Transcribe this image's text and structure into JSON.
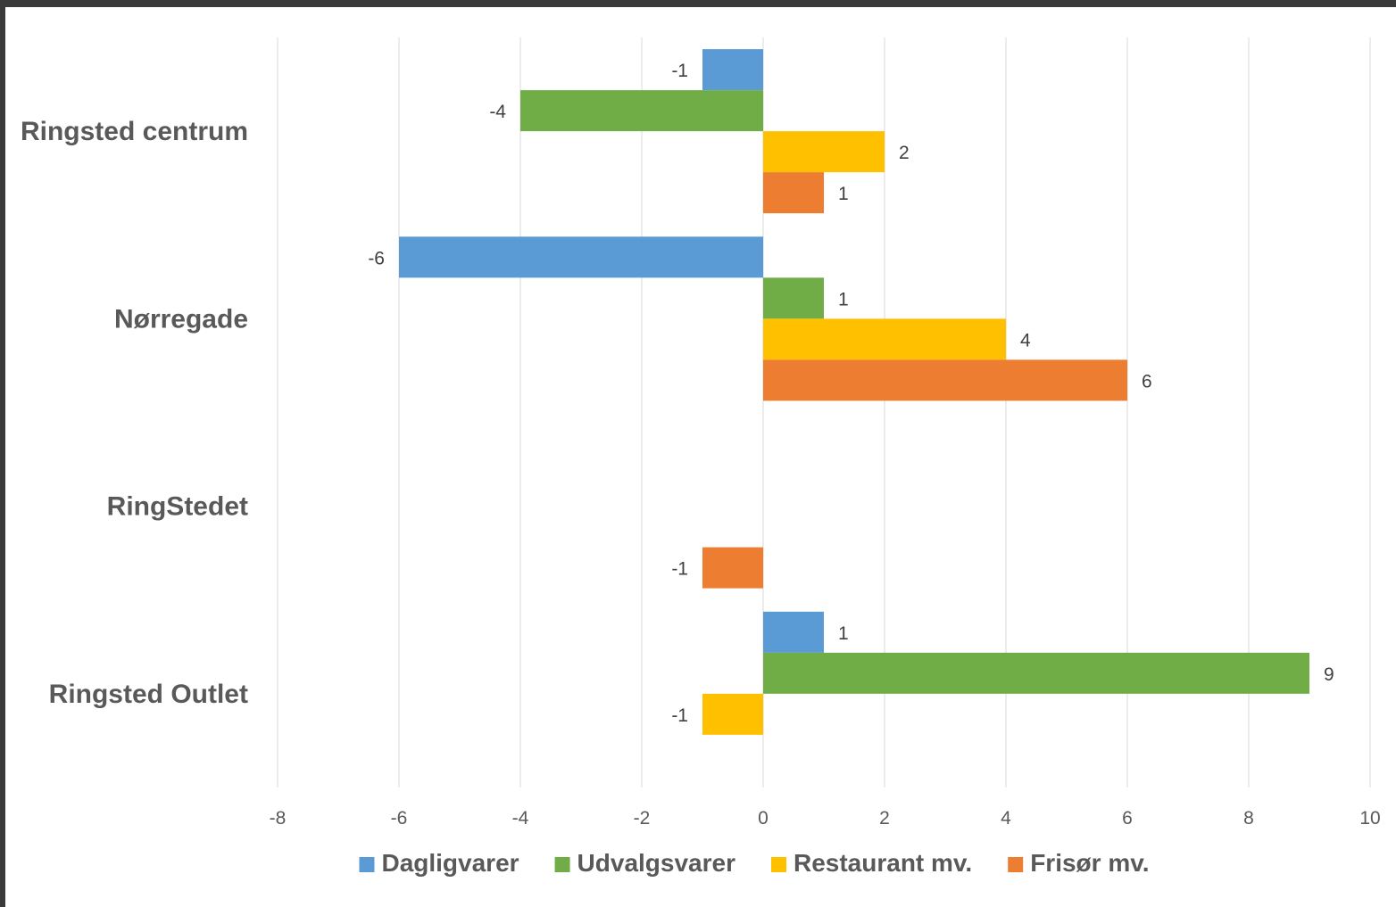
{
  "chart_data": {
    "type": "bar",
    "orientation": "horizontal",
    "categories": [
      "Ringsted centrum",
      "Nørregade",
      "RingStedet",
      "Ringsted Outlet"
    ],
    "series": [
      {
        "name": "Dagligvarer",
        "color": "#5b9bd5",
        "values": [
          -1,
          -6,
          null,
          1
        ]
      },
      {
        "name": "Udvalgsvarer",
        "color": "#70ad47",
        "values": [
          -4,
          1,
          null,
          9
        ]
      },
      {
        "name": "Restaurant mv.",
        "color": "#ffc000",
        "values": [
          2,
          4,
          null,
          -1
        ]
      },
      {
        "name": "Frisør mv.",
        "color": "#ed7d31",
        "values": [
          1,
          6,
          -1,
          null
        ]
      }
    ],
    "xlim": [
      -8,
      10
    ],
    "xticks": [
      -8,
      -6,
      -4,
      -2,
      0,
      2,
      4,
      6,
      8,
      10
    ],
    "grid": true,
    "legend_position": "bottom",
    "data_labels": true
  }
}
